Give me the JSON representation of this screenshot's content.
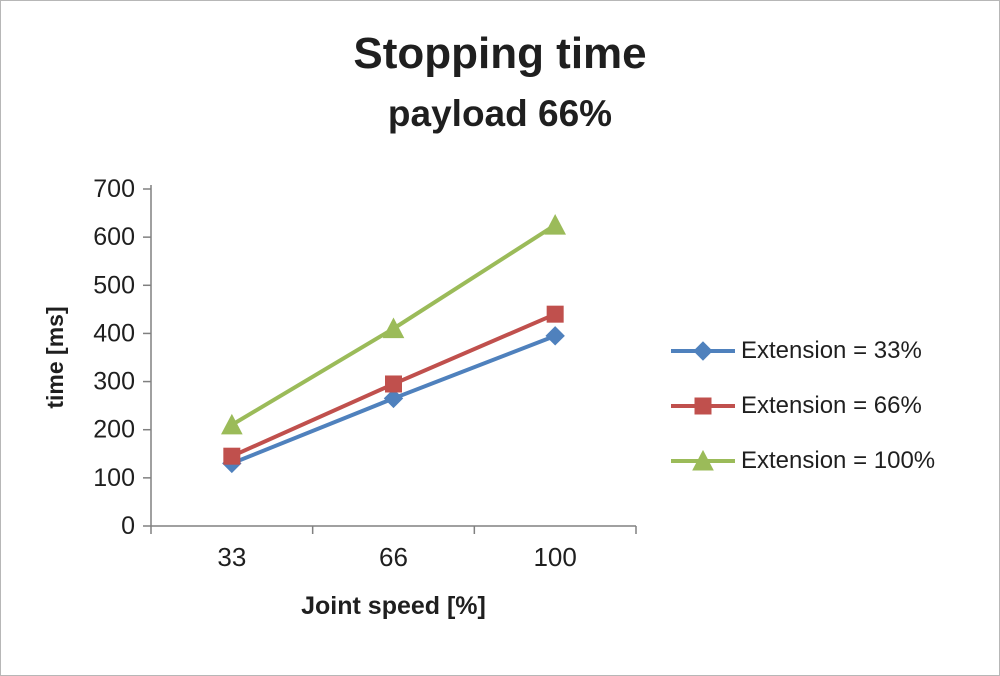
{
  "chart": {
    "title": "Stopping time",
    "subtitle": "payload 66%",
    "x_title": "Joint speed [%]",
    "y_title": "time [ms]"
  },
  "chart_data": {
    "type": "line",
    "title": "Stopping time",
    "subtitle": "payload 66%",
    "xlabel": "Joint speed [%]",
    "ylabel": "time [ms]",
    "categories": [
      "33",
      "66",
      "100"
    ],
    "series": [
      {
        "name": "Extension = 33%",
        "color": "#4F81BD",
        "marker": "diamond",
        "values": [
          130,
          265,
          395
        ]
      },
      {
        "name": "Extension = 66%",
        "color": "#C0504D",
        "marker": "square",
        "values": [
          145,
          295,
          440
        ]
      },
      {
        "name": "Extension = 100%",
        "color": "#9BBB59",
        "marker": "triangle",
        "values": [
          210,
          410,
          625
        ]
      }
    ],
    "ylim": [
      0,
      700
    ],
    "y_step": 100,
    "grid": false,
    "legend_position": "right",
    "axis_color": "#808080",
    "text_color": "#1f1f1f"
  }
}
